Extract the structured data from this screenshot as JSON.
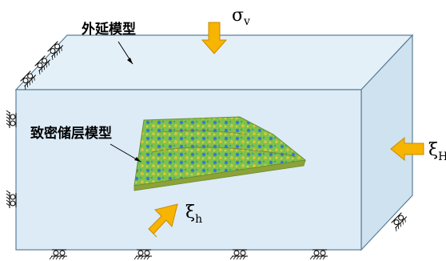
{
  "labels": {
    "outer_model": "外延模型",
    "reservoir_model": "致密储层模型"
  },
  "loads": {
    "vertical": {
      "symbol": "σ",
      "subscript": "v"
    },
    "max_horizontal": {
      "symbol": "ξ",
      "subscript": "H"
    },
    "min_horizontal": {
      "symbol": "ξ",
      "subscript": "h"
    }
  },
  "colors": {
    "box_front": "#dcebf6",
    "box_side": "#cfe2ef",
    "box_top": "#e4f0f8",
    "edge": "#5a7f9a",
    "arrow_fill": "#f7b400",
    "arrow_stroke": "#c98a00"
  }
}
